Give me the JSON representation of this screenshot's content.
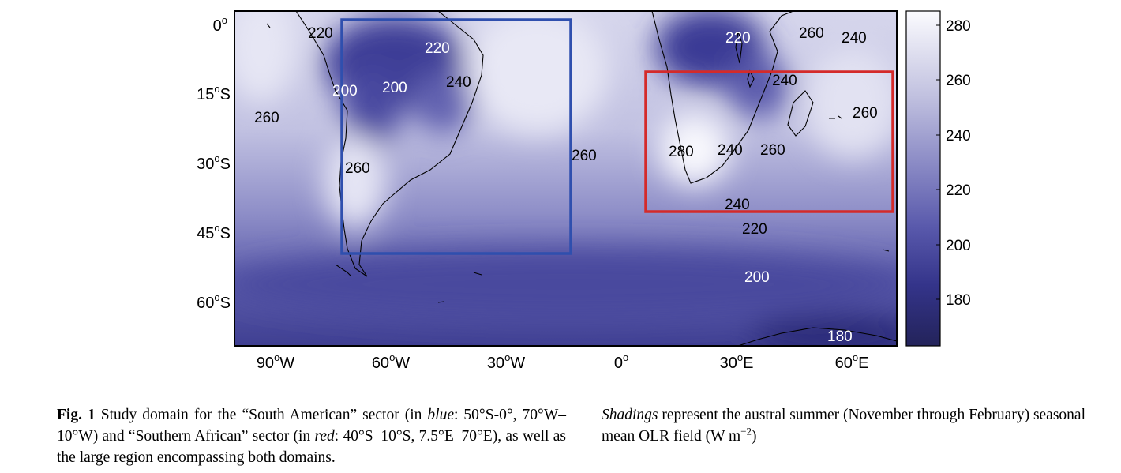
{
  "map": {
    "lat_labels": [
      {
        "main": "0",
        "sup": "o",
        "suffix": ""
      },
      {
        "main": "15",
        "sup": "o",
        "suffix": "S"
      },
      {
        "main": "30",
        "sup": "o",
        "suffix": "S"
      },
      {
        "main": "45",
        "sup": "o",
        "suffix": "S"
      },
      {
        "main": "60",
        "sup": "o",
        "suffix": "S"
      }
    ],
    "lon_labels": [
      {
        "main": "90",
        "sup": "o",
        "suffix": "W"
      },
      {
        "main": "60",
        "sup": "o",
        "suffix": "W"
      },
      {
        "main": "30",
        "sup": "o",
        "suffix": "W"
      },
      {
        "main": "0",
        "sup": "o",
        "suffix": ""
      },
      {
        "main": "30",
        "sup": "o",
        "suffix": "E"
      },
      {
        "main": "60",
        "sup": "o",
        "suffix": "E"
      }
    ],
    "contour_labels": [
      "220",
      "220",
      "200",
      "200",
      "240",
      "260",
      "260",
      "260",
      "220",
      "260",
      "240",
      "240",
      "260",
      "280",
      "240",
      "260",
      "240",
      "220",
      "200",
      "180"
    ],
    "boxes": {
      "south_american": {
        "color": "#2f4fae",
        "lon": [
          -70,
          -10
        ],
        "lat": [
          -50,
          0
        ]
      },
      "southern_african": {
        "color": "#d42a2a",
        "lon": [
          7.5,
          70
        ],
        "lat": [
          -40,
          -10
        ]
      }
    },
    "colors": {
      "dark": "#23235a",
      "mid": "#6565b2",
      "light": "#f3f3fb"
    }
  },
  "colorbar": {
    "ticks": [
      "280",
      "260",
      "240",
      "220",
      "200",
      "180"
    ],
    "range": [
      163,
      285
    ]
  },
  "caption": {
    "left": {
      "fig_label": "Fig. 1",
      "t1": "  Study domain for the “South American” sector (in ",
      "blue": "blue",
      "t2": ": 50°S-0°, 70°W–10°W) and “Southern African” sector (in ",
      "red": "red",
      "t3": ": 40°S–10°S, 7.5°E–70°E), as well as the large region encompassing both domains."
    },
    "right": {
      "shadings": "Shadings",
      "t1": " represent the austral summer (November through February) seasonal mean OLR field (W m",
      "exp": "−2",
      "t2": ")"
    }
  }
}
